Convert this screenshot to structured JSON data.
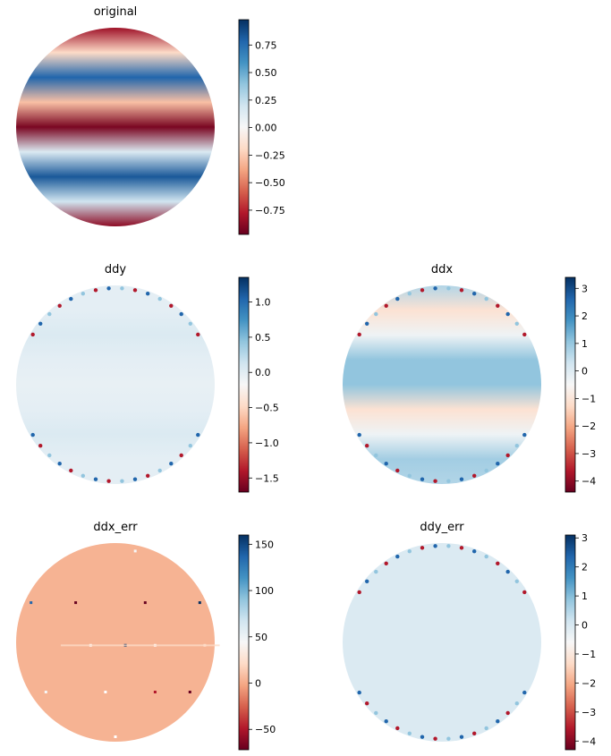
{
  "colormap": "RdBu",
  "colormap_stops": [
    "#67001f",
    "#b2182b",
    "#d6604d",
    "#f4a582",
    "#fddbc7",
    "#f7f7f7",
    "#d1e5f0",
    "#92c5de",
    "#4393c3",
    "#2166ac",
    "#053061"
  ],
  "chart_data": [
    {
      "type": "heatmap",
      "title": "original",
      "shape": "disk",
      "axes": "off",
      "pattern": "horizontal sinusoidal bands",
      "band_rows": [
        -0.85,
        -0.2,
        0.8,
        -0.3,
        -0.95,
        0.15,
        0.85,
        0.2,
        -0.9
      ],
      "colorbar": {
        "vmin": -0.97,
        "vmax": 0.98,
        "ticks": [
          0.75,
          0.5,
          0.25,
          0.0,
          -0.25,
          -0.5,
          -0.75
        ],
        "tick_labels": [
          "0.75",
          "0.50",
          "0.25",
          "0.00",
          "−0.25",
          "−0.50",
          "−0.75"
        ]
      }
    },
    {
      "type": "heatmap",
      "title": "ddy",
      "shape": "disk",
      "axes": "off",
      "pattern": "near-uniform light blue, edge artifacts on rim",
      "band_rows": [
        0.1,
        0.1,
        0.15,
        0.1,
        0.08,
        0.1,
        0.15,
        0.1,
        0.1
      ],
      "colorbar": {
        "vmin": -1.7,
        "vmax": 1.35,
        "ticks": [
          1.0,
          0.5,
          0.0,
          -0.5,
          -1.0,
          -1.5
        ],
        "tick_labels": [
          "1.0",
          "0.5",
          "0.0",
          "−0.5",
          "−1.0",
          "−1.5"
        ]
      }
    },
    {
      "type": "heatmap",
      "title": "ddx",
      "shape": "disk",
      "axes": "off",
      "pattern": "horizontal bands, edge artifacts on rim",
      "band_rows": [
        0.3,
        -0.15,
        0.05,
        0.4,
        0.4,
        -0.15,
        0.05,
        0.35,
        0.3
      ],
      "colorbar": {
        "vmin": -4.4,
        "vmax": 3.4,
        "ticks": [
          3,
          2,
          1,
          0,
          -1,
          -2,
          -3,
          -4
        ],
        "tick_labels": [
          "3",
          "2",
          "1",
          "0",
          "−1",
          "−2",
          "−3",
          "−4"
        ]
      }
    },
    {
      "type": "heatmap",
      "title": "ddx_err",
      "shape": "disk",
      "axes": "off",
      "pattern": "near-uniform salmon, sparse outlier specks",
      "band_rows": [
        -0.35,
        -0.35,
        -0.35,
        -0.35,
        -0.35,
        -0.35,
        -0.35,
        -0.35,
        -0.35
      ],
      "colorbar": {
        "vmin": -72,
        "vmax": 160,
        "ticks": [
          150,
          100,
          50,
          0,
          -50
        ],
        "tick_labels": [
          "150",
          "100",
          "50",
          "0",
          "−50"
        ]
      }
    },
    {
      "type": "heatmap",
      "title": "ddy_err",
      "shape": "disk",
      "axes": "off",
      "pattern": "near-uniform light blue, edge artifacts on rim",
      "band_rows": [
        0.15,
        0.15,
        0.15,
        0.15,
        0.15,
        0.15,
        0.15,
        0.15,
        0.15
      ],
      "colorbar": {
        "vmin": -4.3,
        "vmax": 3.1,
        "ticks": [
          3,
          2,
          1,
          0,
          -1,
          -2,
          -3,
          -4
        ],
        "tick_labels": [
          "3",
          "2",
          "1",
          "0",
          "−1",
          "−2",
          "−3",
          "−4"
        ]
      }
    }
  ]
}
